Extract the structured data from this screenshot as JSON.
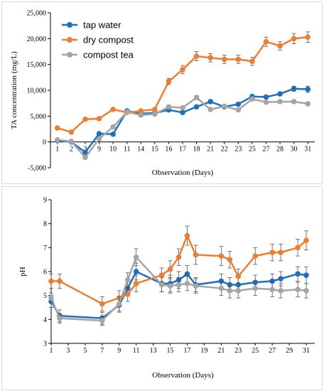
{
  "chart_data": [
    {
      "type": "line",
      "ylabel": "TA concentration (mg/L)",
      "xlabel": "Observation (Days)",
      "ylim": [
        -5000,
        25000
      ],
      "yticks": [
        -5000,
        0,
        5000,
        10000,
        15000,
        20000,
        25000
      ],
      "ytick_labels": [
        "-5,000",
        "0",
        "5,000",
        "10,000",
        "15,000",
        "20,000",
        "25,000"
      ],
      "x_axis": "categorical",
      "categories": [
        "1",
        "2",
        "3",
        "9",
        "10",
        "11",
        "14",
        "15",
        "16",
        "17",
        "18",
        "21",
        "22",
        "23",
        "25",
        "27",
        "28",
        "30",
        "31"
      ],
      "legend": "top-left",
      "grid": false,
      "series": [
        {
          "name": "tap water",
          "color": "#1f6fc0",
          "values": [
            300,
            0,
            -2000,
            1600,
            1500,
            6000,
            5500,
            5600,
            6200,
            5700,
            6800,
            7800,
            6800,
            7300,
            8800,
            8700,
            9300,
            10300,
            10200
          ],
          "errors": [
            0,
            0,
            0,
            0,
            0,
            0,
            0,
            0,
            0,
            0,
            0,
            300,
            0,
            0,
            0,
            0,
            0,
            500,
            600
          ]
        },
        {
          "name": "dry compost",
          "color": "#ed7d31",
          "values": [
            2700,
            1900,
            4400,
            4500,
            6300,
            5700,
            6000,
            6300,
            11700,
            14000,
            16600,
            16300,
            16000,
            16000,
            15600,
            19400,
            18600,
            20000,
            20300
          ],
          "errors": [
            0,
            0,
            0,
            0,
            0,
            0,
            0,
            0,
            600,
            800,
            900,
            800,
            800,
            800,
            800,
            900,
            800,
            1000,
            1000
          ]
        },
        {
          "name": "compost tea",
          "color": "#a5a5a5",
          "values": [
            400,
            100,
            -3000,
            600,
            2900,
            5800,
            5200,
            5400,
            6800,
            6600,
            8600,
            6300,
            6900,
            6200,
            8300,
            7700,
            7800,
            7800,
            7400
          ],
          "errors": [
            0,
            0,
            0,
            0,
            0,
            0,
            0,
            0,
            0,
            0,
            400,
            0,
            0,
            0,
            0,
            0,
            0,
            0,
            0
          ]
        }
      ]
    },
    {
      "type": "line",
      "ylabel": "pH",
      "xlabel": "Observation (Days)",
      "xlim": [
        1,
        32
      ],
      "xticks": [
        1,
        3,
        5,
        7,
        9,
        11,
        13,
        15,
        17,
        19,
        21,
        23,
        25,
        27,
        29,
        31
      ],
      "ylim": [
        3,
        9
      ],
      "yticks": [
        3,
        4,
        5,
        6,
        7,
        8,
        9
      ],
      "grid": false,
      "series": [
        {
          "name": "tap water",
          "color": "#1f6fc0",
          "x": [
            1,
            2,
            7,
            9,
            10,
            11,
            14,
            15,
            16,
            17,
            18,
            21,
            22,
            23,
            25,
            27,
            28,
            30,
            31
          ],
          "values": [
            4.75,
            4.15,
            4.05,
            4.6,
            5.3,
            6.0,
            5.5,
            5.5,
            5.65,
            5.9,
            5.45,
            5.6,
            5.45,
            5.45,
            5.55,
            5.6,
            5.7,
            5.9,
            5.85
          ],
          "errors": [
            0.25,
            0.25,
            0.25,
            0.3,
            0.3,
            0.35,
            0.35,
            0.35,
            0.35,
            0.35,
            0.3,
            0.3,
            0.3,
            0.3,
            0.3,
            0.3,
            0.3,
            0.3,
            0.35
          ]
        },
        {
          "name": "dry compost",
          "color": "#ed7d31",
          "x": [
            1,
            2,
            7,
            9,
            10,
            11,
            14,
            15,
            16,
            17,
            18,
            21,
            22,
            23,
            25,
            27,
            28,
            30,
            31
          ],
          "values": [
            5.6,
            5.6,
            4.65,
            4.9,
            5.05,
            5.5,
            5.85,
            6.1,
            6.6,
            7.5,
            6.7,
            6.65,
            6.5,
            5.8,
            6.65,
            6.8,
            6.8,
            7.0,
            7.3
          ],
          "errors": [
            0.3,
            0.3,
            0.3,
            0.3,
            0.3,
            0.35,
            0.3,
            0.35,
            0.35,
            0.4,
            0.4,
            0.4,
            0.35,
            0.3,
            0.35,
            0.35,
            0.35,
            0.35,
            0.4
          ]
        },
        {
          "name": "compost tea",
          "color": "#a5a5a5",
          "x": [
            1,
            2,
            7,
            9,
            10,
            11,
            14,
            15,
            16,
            17,
            18,
            21,
            22,
            23,
            25,
            27,
            28,
            30,
            31
          ],
          "values": [
            4.9,
            4.05,
            3.95,
            4.65,
            5.65,
            6.6,
            5.45,
            5.4,
            5.45,
            5.5,
            5.4,
            5.3,
            5.2,
            5.2,
            5.3,
            5.25,
            5.2,
            5.25,
            5.2
          ],
          "errors": [
            0.2,
            0.2,
            0.2,
            0.3,
            0.3,
            0.35,
            0.3,
            0.3,
            0.3,
            0.3,
            0.3,
            0.3,
            0.3,
            0.3,
            0.3,
            0.3,
            0.3,
            0.3,
            0.3
          ]
        }
      ]
    }
  ]
}
